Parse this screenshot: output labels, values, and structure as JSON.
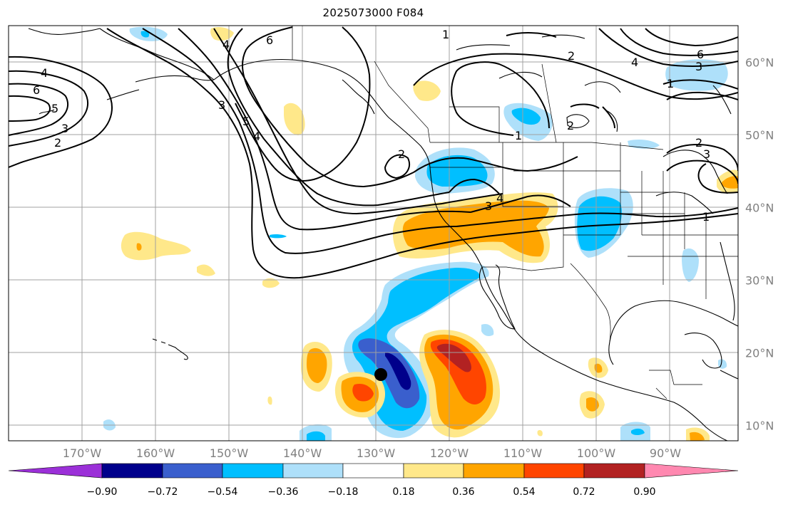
{
  "title": "2025073000 F084",
  "lon_labels": [
    "170°W",
    "160°W",
    "150°W",
    "140°W",
    "130°W",
    "120°W",
    "110°W",
    "100°W",
    "90°W"
  ],
  "lat_labels": [
    "60°N",
    "50°N",
    "40°N",
    "30°N",
    "20°N",
    "10°N"
  ],
  "colorbar": {
    "labels": [
      "−0.90",
      "−0.72",
      "−0.54",
      "−0.36",
      "−0.18",
      "0.18",
      "0.36",
      "0.54",
      "0.72",
      "0.90"
    ],
    "colors": [
      "#9b30d8",
      "#00008b",
      "#3a5fcd",
      "#00bfff",
      "#aee0fa",
      "#ffffff",
      "#ffe88a",
      "#ffa500",
      "#ff4500",
      "#b22222",
      "#ff88b0"
    ]
  },
  "contour_labels": [
    "1",
    "1",
    "1",
    "1",
    "2",
    "2",
    "2",
    "2",
    "2",
    "3",
    "3",
    "3",
    "3",
    "3",
    "4",
    "4",
    "4",
    "4",
    "4",
    "5",
    "5",
    "6",
    "6",
    "6"
  ],
  "marker": "black-dot"
}
